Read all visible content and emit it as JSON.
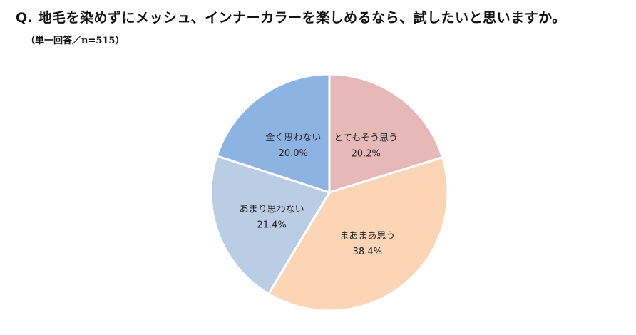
{
  "header": {
    "question": "Q. 地毛を染めずにメッシュ、インナーカラーを楽しめるなら、試したいと思いますか。",
    "note": "（単一回答／n=515）"
  },
  "chart_data": {
    "type": "pie",
    "title": "",
    "slices": [
      {
        "label": "とてもそう思う",
        "value": 20.2,
        "value_label": "20.2%",
        "color": "#e6b8b7"
      },
      {
        "label": "まあまあ思う",
        "value": 38.4,
        "value_label": "38.4%",
        "color": "#fbd5b5"
      },
      {
        "label": "あまり思わない",
        "value": 21.4,
        "value_label": "21.4%",
        "color": "#b9cde5"
      },
      {
        "label": "全く思わない",
        "value": 20.0,
        "value_label": "20.0%",
        "color": "#8db3e2"
      }
    ]
  }
}
